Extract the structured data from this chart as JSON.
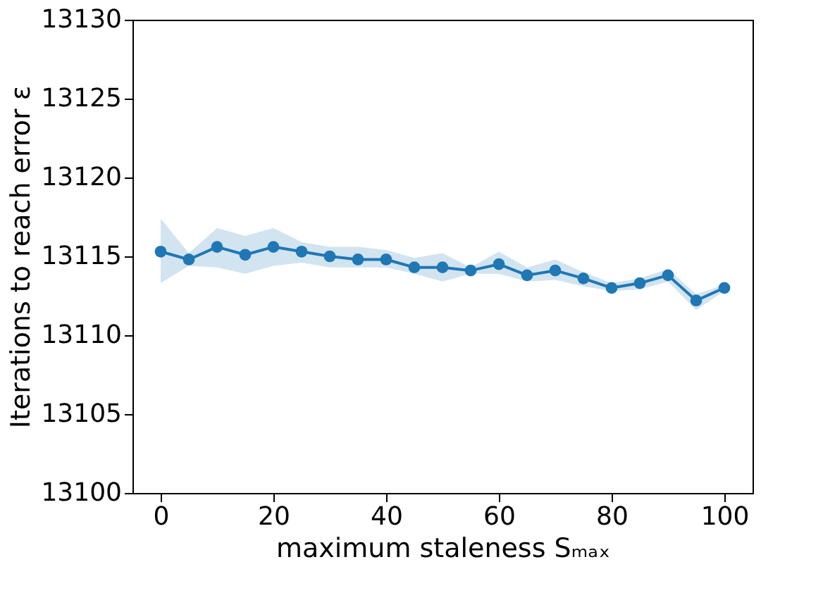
{
  "chart_data": {
    "type": "line",
    "xlabel": "maximum staleness Sₘₐₓ",
    "ylabel": "Iterations to reach error ε",
    "x": [
      0,
      5,
      10,
      15,
      20,
      25,
      30,
      35,
      40,
      45,
      50,
      55,
      60,
      65,
      70,
      75,
      80,
      85,
      90,
      95,
      100
    ],
    "series": [
      {
        "color": "#1f77b4",
        "values": [
          13115.3,
          13114.8,
          13115.6,
          13115.1,
          13115.6,
          13115.3,
          13115.0,
          13114.8,
          13114.8,
          13114.3,
          13114.3,
          13114.1,
          13114.5,
          13113.8,
          13114.1,
          13113.6,
          13113.0,
          13113.3,
          13113.8,
          13112.2,
          13113.0
        ],
        "upper": [
          13117.4,
          13115.2,
          13116.8,
          13116.3,
          13116.8,
          13115.9,
          13115.6,
          13115.6,
          13115.4,
          13114.9,
          13115.2,
          13114.3,
          13115.3,
          13114.3,
          13114.8,
          13114.0,
          13113.3,
          13113.6,
          13114.2,
          13112.6,
          13113.2
        ],
        "lower": [
          13113.3,
          13114.4,
          13114.3,
          13113.9,
          13114.4,
          13114.6,
          13114.3,
          13114.3,
          13114.3,
          13113.9,
          13113.4,
          13113.9,
          13113.9,
          13113.4,
          13113.5,
          13113.1,
          13112.8,
          13112.9,
          13113.4,
          13111.6,
          13112.8
        ]
      }
    ],
    "xlim": [
      -5,
      105
    ],
    "xticks": [
      0,
      20,
      40,
      60,
      80,
      100
    ],
    "ylim": [
      13100,
      13130
    ],
    "yticks": [
      13100,
      13105,
      13110,
      13115,
      13120,
      13125,
      13130
    ],
    "grid": false,
    "marker": "circle",
    "line_style": "solid"
  }
}
